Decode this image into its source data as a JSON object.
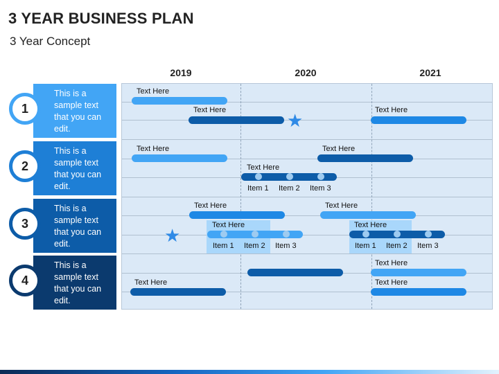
{
  "header": {
    "title": "3 YEAR BUSINESS PLAN",
    "subtitle": "3 Year Concept"
  },
  "years": [
    "2019",
    "2020",
    "2021"
  ],
  "rows": [
    {
      "number": "1",
      "text": "This is a sample text that you can edit.",
      "color": "#42a5f5"
    },
    {
      "number": "2",
      "text": "This is a sample text that you can edit.",
      "color": "#1e7fd6"
    },
    {
      "number": "3",
      "text": "This is a sample text that you can edit.",
      "color": "#0d5ca8"
    },
    {
      "number": "4",
      "text": "This is a sample text that you can edit.",
      "color": "#0b3a6e"
    }
  ],
  "labels": {
    "text_here": "Text Here",
    "item1": "Item 1",
    "item2": "Item 2",
    "item3": "Item 3"
  },
  "colors": {
    "light_bar": "#42a5f5",
    "dark_bar": "#0d5ca8",
    "grid_bg": "#dbe9f7",
    "star": "#2f8ae6"
  }
}
